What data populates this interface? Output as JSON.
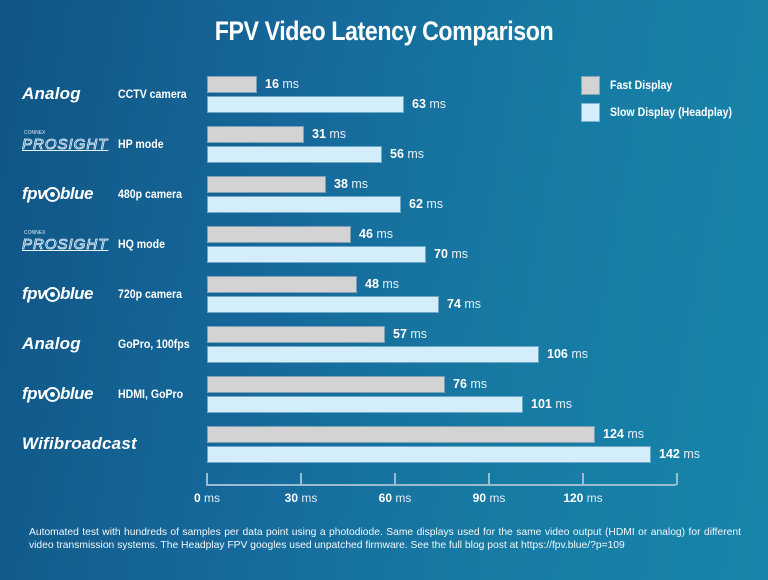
{
  "title": "FPV Video Latency Comparison",
  "legend": [
    {
      "label": "Fast Display",
      "color": "#d3d3d3"
    },
    {
      "label": "Slow Display (Headplay)",
      "color": "#d3edfb"
    }
  ],
  "rows": [
    {
      "brand": "Analog",
      "brand_type": "text",
      "config": "CCTV camera",
      "fast_label": "16",
      "slow_label": "63"
    },
    {
      "brand": "PROSIGHT",
      "brand_small": "CONNEX",
      "brand_type": "prosight",
      "config": "HP mode",
      "fast_label": "31",
      "slow_label": "56"
    },
    {
      "brand": "fpv",
      "brand_suffix": "blue",
      "brand_type": "fpvblue",
      "config": "480p camera",
      "fast_label": "38",
      "slow_label": "62"
    },
    {
      "brand": "PROSIGHT",
      "brand_small": "CONNEX",
      "brand_type": "prosight",
      "config": "HQ mode",
      "fast_label": "46",
      "slow_label": "70"
    },
    {
      "brand": "fpv",
      "brand_suffix": "blue",
      "brand_type": "fpvblue",
      "config": "720p camera",
      "fast_label": "48",
      "slow_label": "74"
    },
    {
      "brand": "Analog",
      "brand_type": "text",
      "config": "GoPro, 100fps",
      "fast_label": "57",
      "slow_label": "106"
    },
    {
      "brand": "fpv",
      "brand_suffix": "blue",
      "brand_type": "fpvblue",
      "config": "HDMI, GoPro",
      "fast_label": "76",
      "slow_label": "101"
    },
    {
      "brand": "Wifibroadcast",
      "brand_type": "text",
      "config": "",
      "fast_label": "124",
      "slow_label": "142"
    }
  ],
  "unit": "ms",
  "axis": {
    "ticks": [
      "0",
      "30",
      "60",
      "90",
      "120"
    ],
    "unit": "ms"
  },
  "footer": "Automated test with hundreds of samples per data point using a photodiode. Same displays used for the same video output (HDMI or analog) for different video transmission systems. The Headplay FPV googles used unpatched firmware. See the full blog post at https://fpv.blue/?p=109",
  "chart_data": {
    "type": "bar",
    "orientation": "horizontal",
    "title": "FPV Video Latency Comparison",
    "categories": [
      "Analog CCTV camera",
      "ProSight HP mode",
      "fpv.blue 480p camera",
      "ProSight HQ mode",
      "fpv.blue 720p camera",
      "Analog GoPro, 100fps",
      "fpv.blue HDMI, GoPro",
      "Wifibroadcast"
    ],
    "series": [
      {
        "name": "Fast Display",
        "color": "#d3d3d3",
        "values": [
          16,
          31,
          38,
          46,
          48,
          57,
          76,
          124
        ]
      },
      {
        "name": "Slow Display (Headplay)",
        "color": "#d3edfb",
        "values": [
          63,
          56,
          62,
          70,
          74,
          106,
          101,
          142
        ]
      }
    ],
    "xlabel": "",
    "ylabel": "",
    "xlim": [
      0,
      150
    ],
    "x_ticks": [
      0,
      30,
      60,
      90,
      120
    ],
    "x_tick_labels": [
      "0 ms",
      "30 ms",
      "60 ms",
      "90 ms",
      "120 ms"
    ],
    "grid": false,
    "legend_position": "top-right",
    "value_labels": true,
    "unit": "ms"
  }
}
